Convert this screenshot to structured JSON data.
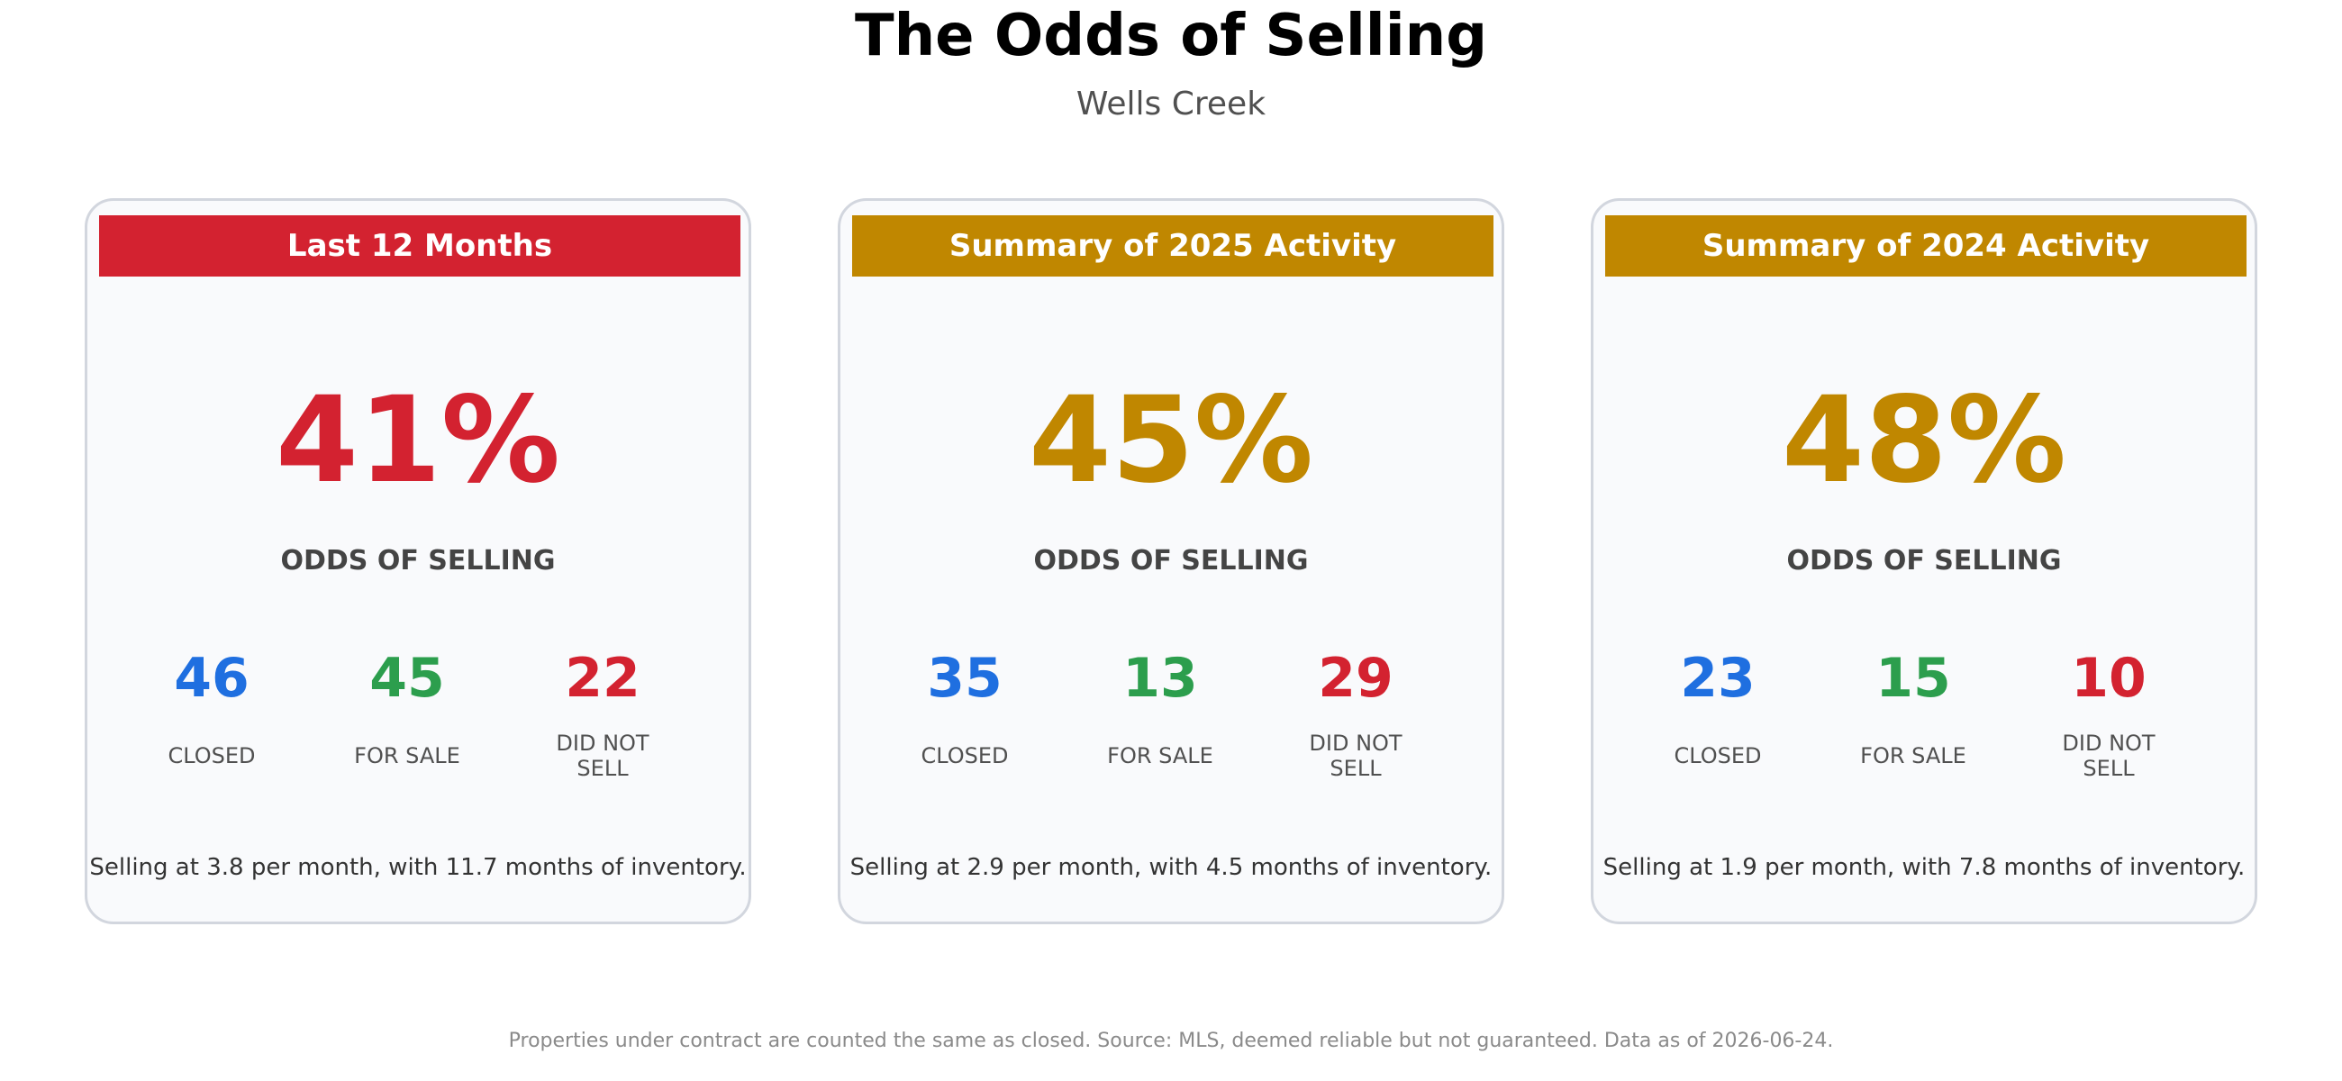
{
  "header": {
    "title": "The Odds of Selling",
    "subtitle": "Wells Creek"
  },
  "colors": {
    "red": "#d32230",
    "gold": "#c08700",
    "blue": "#1f6fe0",
    "green": "#2c9e4d",
    "card_background": "#f9fafc",
    "card_border": "#d2d6de"
  },
  "cards": [
    {
      "header": "Last 12 Months",
      "header_color": "#d32230",
      "odds": "41%",
      "odds_color": "#d32230",
      "odds_label": "ODDS OF SELLING",
      "closed": "46",
      "for_sale": "45",
      "did_not_sell": "22",
      "closed_label": "CLOSED",
      "for_sale_label": "FOR SALE",
      "did_not_sell_label": "DID NOT SELL",
      "summary": "Selling at 3.8 per month, with 11.7 months of inventory."
    },
    {
      "header": "Summary of 2025 Activity",
      "header_color": "#c08700",
      "odds": "45%",
      "odds_color": "#c08700",
      "odds_label": "ODDS OF SELLING",
      "closed": "35",
      "for_sale": "13",
      "did_not_sell": "29",
      "closed_label": "CLOSED",
      "for_sale_label": "FOR SALE",
      "did_not_sell_label": "DID NOT SELL",
      "summary": "Selling at 2.9 per month, with 4.5 months of inventory."
    },
    {
      "header": "Summary of 2024 Activity",
      "header_color": "#c08700",
      "odds": "48%",
      "odds_color": "#c08700",
      "odds_label": "ODDS OF SELLING",
      "closed": "23",
      "for_sale": "15",
      "did_not_sell": "10",
      "closed_label": "CLOSED",
      "for_sale_label": "FOR SALE",
      "did_not_sell_label": "DID NOT SELL",
      "summary": "Selling at 1.9 per month, with 7.8 months of inventory."
    }
  ],
  "footer": {
    "note": "Properties under contract are counted the same as closed. Source: MLS, deemed reliable but not guaranteed. Data as of 2026-06-24."
  }
}
